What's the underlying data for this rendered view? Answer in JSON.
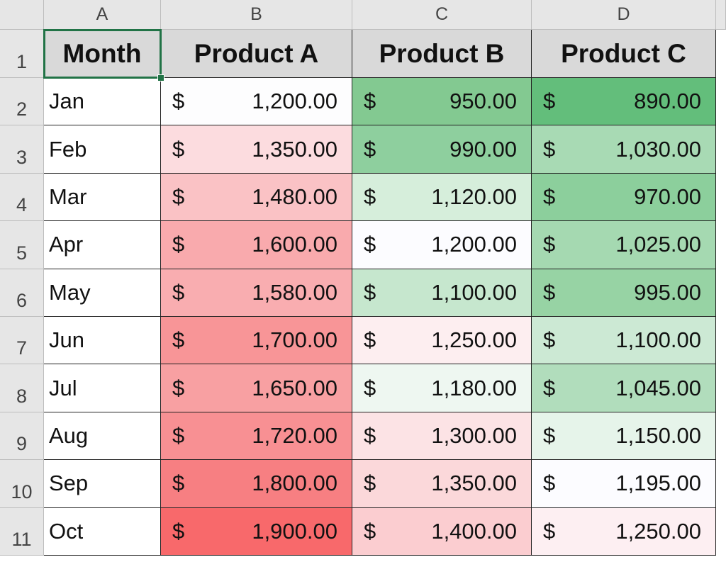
{
  "column_headers": [
    "A",
    "B",
    "C",
    "D"
  ],
  "row_headers": [
    "1",
    "2",
    "3",
    "4",
    "5",
    "6",
    "7",
    "8",
    "9",
    "10",
    "11"
  ],
  "currency": "$",
  "header_row": [
    "Month",
    "Product A",
    "Product B",
    "Product C"
  ],
  "rows": [
    {
      "month": "Jan",
      "cells": [
        {
          "text": "1,200.00",
          "fill": "#fdfdfe"
        },
        {
          "text": "950.00",
          "fill": "#83c991"
        },
        {
          "text": "890.00",
          "fill": "#63be7b"
        }
      ]
    },
    {
      "month": "Feb",
      "cells": [
        {
          "text": "1,350.00",
          "fill": "#fcdcdf"
        },
        {
          "text": "990.00",
          "fill": "#8ecf9e"
        },
        {
          "text": "1,030.00",
          "fill": "#a8dab4"
        }
      ]
    },
    {
      "month": "Mar",
      "cells": [
        {
          "text": "1,480.00",
          "fill": "#fac2c5"
        },
        {
          "text": "1,120.00",
          "fill": "#d6eedb"
        },
        {
          "text": "970.00",
          "fill": "#8ccf9c"
        }
      ]
    },
    {
      "month": "Apr",
      "cells": [
        {
          "text": "1,600.00",
          "fill": "#f9aaad"
        },
        {
          "text": "1,200.00",
          "fill": "#fcfcff"
        },
        {
          "text": "1,025.00",
          "fill": "#a5d9b1"
        }
      ]
    },
    {
      "month": "May",
      "cells": [
        {
          "text": "1,580.00",
          "fill": "#f9adb0"
        },
        {
          "text": "1,100.00",
          "fill": "#c6e7ce"
        },
        {
          "text": "995.00",
          "fill": "#97d3a4"
        }
      ]
    },
    {
      "month": "Jun",
      "cells": [
        {
          "text": "1,700.00",
          "fill": "#f89597"
        },
        {
          "text": "1,250.00",
          "fill": "#fdeef0"
        },
        {
          "text": "1,100.00",
          "fill": "#cce9d4"
        }
      ]
    },
    {
      "month": "Jul",
      "cells": [
        {
          "text": "1,650.00",
          "fill": "#f8a0a2"
        },
        {
          "text": "1,180.00",
          "fill": "#eef7f1"
        },
        {
          "text": "1,045.00",
          "fill": "#b1ddbc"
        }
      ]
    },
    {
      "month": "Aug",
      "cells": [
        {
          "text": "1,720.00",
          "fill": "#f89093"
        },
        {
          "text": "1,300.00",
          "fill": "#fce3e5"
        },
        {
          "text": "1,150.00",
          "fill": "#e6f4ea"
        }
      ]
    },
    {
      "month": "Sep",
      "cells": [
        {
          "text": "1,800.00",
          "fill": "#f77f82"
        },
        {
          "text": "1,350.00",
          "fill": "#fbd8da"
        },
        {
          "text": "1,195.00",
          "fill": "#fcfcff"
        }
      ]
    },
    {
      "month": "Oct",
      "cells": [
        {
          "text": "1,900.00",
          "fill": "#f8696b"
        },
        {
          "text": "1,400.00",
          "fill": "#fbcdd0"
        },
        {
          "text": "1,250.00",
          "fill": "#fdeff2"
        }
      ]
    }
  ]
}
